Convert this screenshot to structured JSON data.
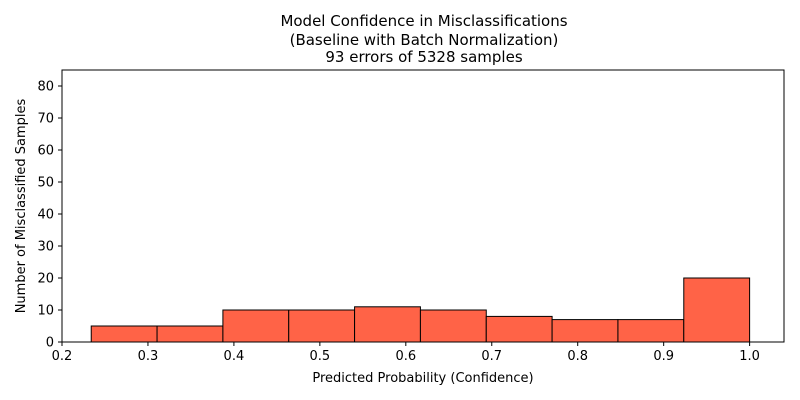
{
  "chart_data": {
    "type": "bar",
    "title": [
      "Model Confidence in Misclassifications",
      "(Baseline with Batch Normalization)",
      "93 errors of 5328 samples"
    ],
    "xlabel": "Predicted Probability (Confidence)",
    "ylabel": "Number of Misclassified Samples",
    "xlim": [
      0.2,
      1.04
    ],
    "ylim": [
      0,
      85
    ],
    "x_ticks": [
      0.2,
      0.3,
      0.4,
      0.5,
      0.6,
      0.7,
      0.8,
      0.9,
      1.0
    ],
    "x_tick_labels": [
      "0.2",
      "0.3",
      "0.4",
      "0.5",
      "0.6",
      "0.7",
      "0.8",
      "0.9",
      "1.0"
    ],
    "y_ticks": [
      0,
      10,
      20,
      30,
      40,
      50,
      60,
      70,
      80
    ],
    "y_tick_labels": [
      "0",
      "10",
      "20",
      "30",
      "40",
      "50",
      "60",
      "70",
      "80"
    ],
    "bin_edges": [
      0.234,
      0.3106,
      0.3872,
      0.4638,
      0.5404,
      0.617,
      0.6936,
      0.7702,
      0.8468,
      0.9234,
      1.0
    ],
    "counts": [
      5,
      5,
      10,
      10,
      11,
      10,
      8,
      7,
      7,
      20
    ],
    "bar_color": "#ff6347",
    "edge_color": "#000000",
    "grid": false
  }
}
